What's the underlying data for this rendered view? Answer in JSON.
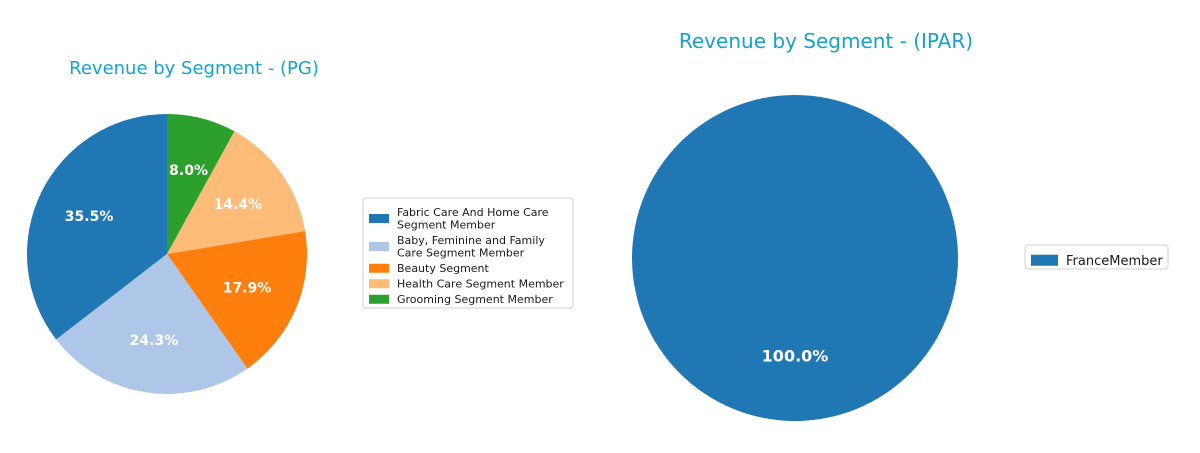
{
  "chart_data": [
    {
      "type": "pie",
      "title": "Revenue by Segment - (PG)",
      "legend_position": "right",
      "slices": [
        {
          "label": "Fabric Care And Home Care Segment Member",
          "legend_lines": [
            "Fabric Care And Home Care",
            "Segment Member"
          ],
          "value": 35.5,
          "display": "35.5%",
          "color": "#1f77b4"
        },
        {
          "label": "Baby, Feminine and Family Care Segment Member",
          "legend_lines": [
            "Baby, Feminine and Family",
            "Care Segment Member"
          ],
          "value": 24.3,
          "display": "24.3%",
          "color": "#aec7e8"
        },
        {
          "label": "Beauty Segment",
          "legend_lines": [
            "Beauty Segment"
          ],
          "value": 17.9,
          "display": "17.9%",
          "color": "#ff7f0e"
        },
        {
          "label": "Health Care Segment Member",
          "legend_lines": [
            "Health Care Segment Member"
          ],
          "value": 14.4,
          "display": "14.4%",
          "color": "#ffbb78"
        },
        {
          "label": "Grooming Segment Member",
          "legend_lines": [
            "Grooming Segment Member"
          ],
          "value": 8.0,
          "display": "8.0%",
          "color": "#2ca02c"
        }
      ]
    },
    {
      "type": "pie",
      "title": "Revenue by Segment - (IPAR)",
      "legend_position": "right",
      "slices": [
        {
          "label": "FranceMember",
          "legend_lines": [
            "FranceMember"
          ],
          "value": 100.0,
          "display": "100.0%",
          "color": "#1f77b4"
        }
      ]
    }
  ]
}
